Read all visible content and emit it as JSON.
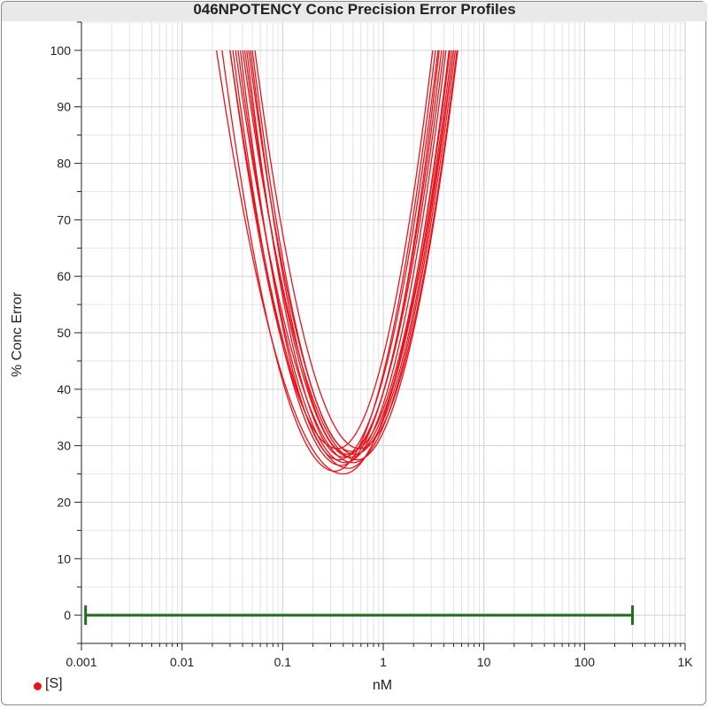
{
  "title": "046NPOTENCY Conc Precision Error Profiles",
  "colors": {
    "profile": "#e8131b",
    "range_bar": "#1f6b1f",
    "grid": "#d6d6d6",
    "axis": "#222222"
  },
  "legend": {
    "label": "[S]",
    "marker_color": "#e8131b",
    "placement": "bottom-left"
  },
  "chart_data": {
    "type": "line",
    "title": "046NPOTENCY Conc Precision Error Profiles",
    "xlabel": "nM",
    "ylabel": "% Conc Error",
    "xscale": "log",
    "xlim": [
      0.001,
      1000
    ],
    "ylim": [
      -5,
      105
    ],
    "x_ticks": [
      0.001,
      0.01,
      0.1,
      1,
      10,
      100,
      1000
    ],
    "x_tick_labels": [
      "0.001",
      "0.01",
      "0.1",
      "1",
      "10",
      "100",
      "1K"
    ],
    "y_ticks": [
      0,
      10,
      20,
      30,
      40,
      50,
      60,
      70,
      80,
      90,
      100
    ],
    "y_tick_labels": [
      "0",
      "10",
      "20",
      "30",
      "40",
      "50",
      "60",
      "70",
      "80",
      "90",
      "100"
    ],
    "grid": true,
    "series_shape": "U-shaped error profile: y = min_error + curvature * (log10(x) - log10(x_min))^2, clipped at 100",
    "series": [
      {
        "min_x": 0.4,
        "min_error": 25.0,
        "left_x_at_100": 0.022,
        "right_x_at_100": 5.0
      },
      {
        "min_x": 0.33,
        "min_error": 25.5,
        "left_x_at_100": 0.025,
        "right_x_at_100": 3.3
      },
      {
        "min_x": 0.45,
        "min_error": 26.0,
        "left_x_at_100": 0.03,
        "right_x_at_100": 4.5
      },
      {
        "min_x": 0.38,
        "min_error": 26.5,
        "left_x_at_100": 0.032,
        "right_x_at_100": 3.8
      },
      {
        "min_x": 0.5,
        "min_error": 27.0,
        "left_x_at_100": 0.034,
        "right_x_at_100": 5.2
      },
      {
        "min_x": 0.42,
        "min_error": 27.0,
        "left_x_at_100": 0.036,
        "right_x_at_100": 4.2
      },
      {
        "min_x": 0.36,
        "min_error": 27.5,
        "left_x_at_100": 0.038,
        "right_x_at_100": 3.5
      },
      {
        "min_x": 0.55,
        "min_error": 27.5,
        "left_x_at_100": 0.04,
        "right_x_at_100": 5.5
      },
      {
        "min_x": 0.47,
        "min_error": 28.0,
        "left_x_at_100": 0.042,
        "right_x_at_100": 4.8
      },
      {
        "min_x": 0.4,
        "min_error": 28.0,
        "left_x_at_100": 0.044,
        "right_x_at_100": 4.0
      },
      {
        "min_x": 0.52,
        "min_error": 28.5,
        "left_x_at_100": 0.046,
        "right_x_at_100": 5.0
      },
      {
        "min_x": 0.44,
        "min_error": 28.5,
        "left_x_at_100": 0.048,
        "right_x_at_100": 3.6
      },
      {
        "min_x": 0.48,
        "min_error": 29.0,
        "left_x_at_100": 0.05,
        "right_x_at_100": 4.6
      },
      {
        "min_x": 0.58,
        "min_error": 29.5,
        "left_x_at_100": 0.053,
        "right_x_at_100": 5.4
      },
      {
        "min_x": 0.35,
        "min_error": 29.5,
        "left_x_at_100": 0.03,
        "right_x_at_100": 3.1
      }
    ],
    "range_bar": {
      "x_start": 0.0011,
      "x_end": 300,
      "y": 0,
      "color": "#1f6b1f"
    }
  }
}
